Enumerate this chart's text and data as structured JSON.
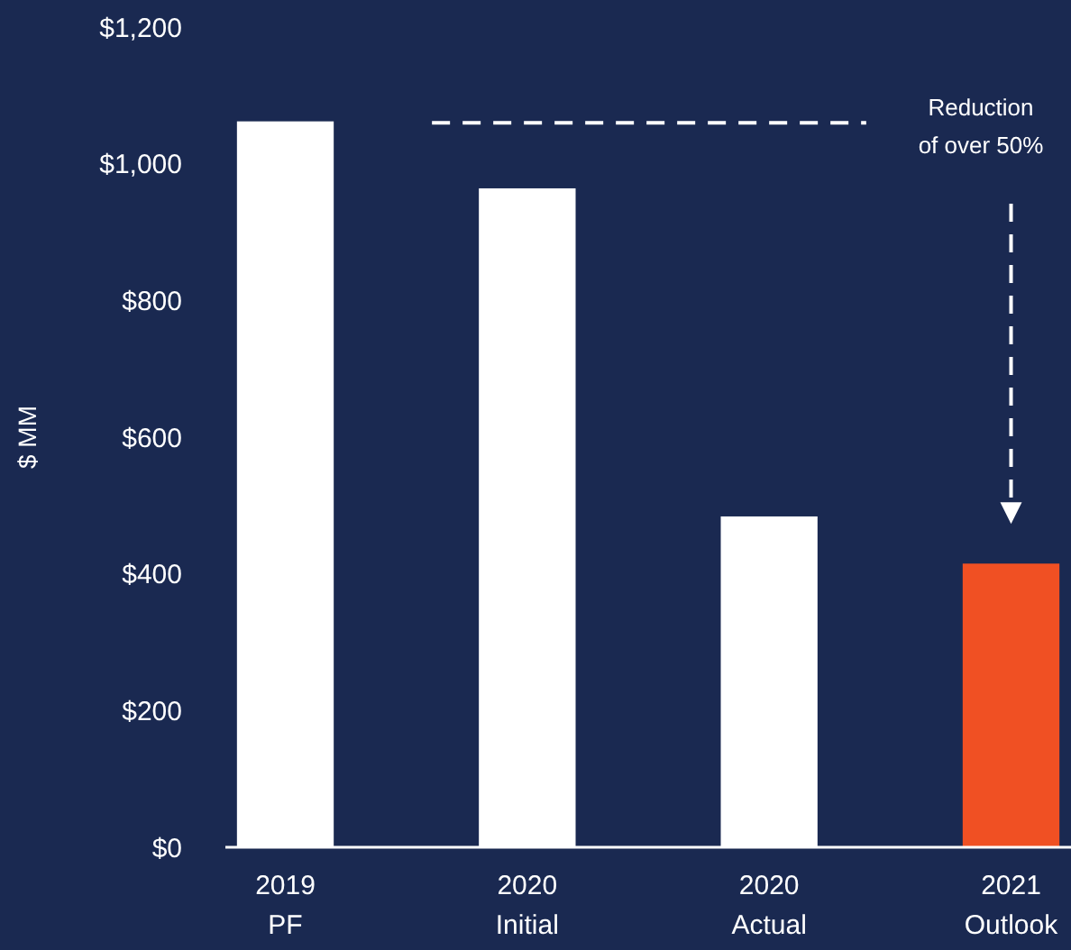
{
  "chart_data": {
    "type": "bar",
    "categories": [
      "2019 PF",
      "2020 Initial",
      "2020 Actual",
      "2021 Outlook"
    ],
    "values": [
      1062,
      964,
      484,
      415
    ],
    "colors": [
      "#ffffff",
      "#ffffff",
      "#ffffff",
      "#f05023"
    ],
    "ylabel": "$ MM",
    "ylim": [
      0,
      1200
    ],
    "yticks": [
      {
        "value": 0,
        "label": "$0"
      },
      {
        "value": 200,
        "label": "$200"
      },
      {
        "value": 400,
        "label": "$400"
      },
      {
        "value": 600,
        "label": "$600"
      },
      {
        "value": 800,
        "label": "$800"
      },
      {
        "value": 1000,
        "label": "$1,000"
      },
      {
        "value": 1200,
        "label": "$1,200"
      }
    ],
    "ref_lines": [
      {
        "axis": "y",
        "value": 1060,
        "label": null,
        "color": "#ffffff",
        "line_style": "dashed"
      }
    ],
    "annotations": [
      "Reduction of over 50%"
    ]
  }
}
